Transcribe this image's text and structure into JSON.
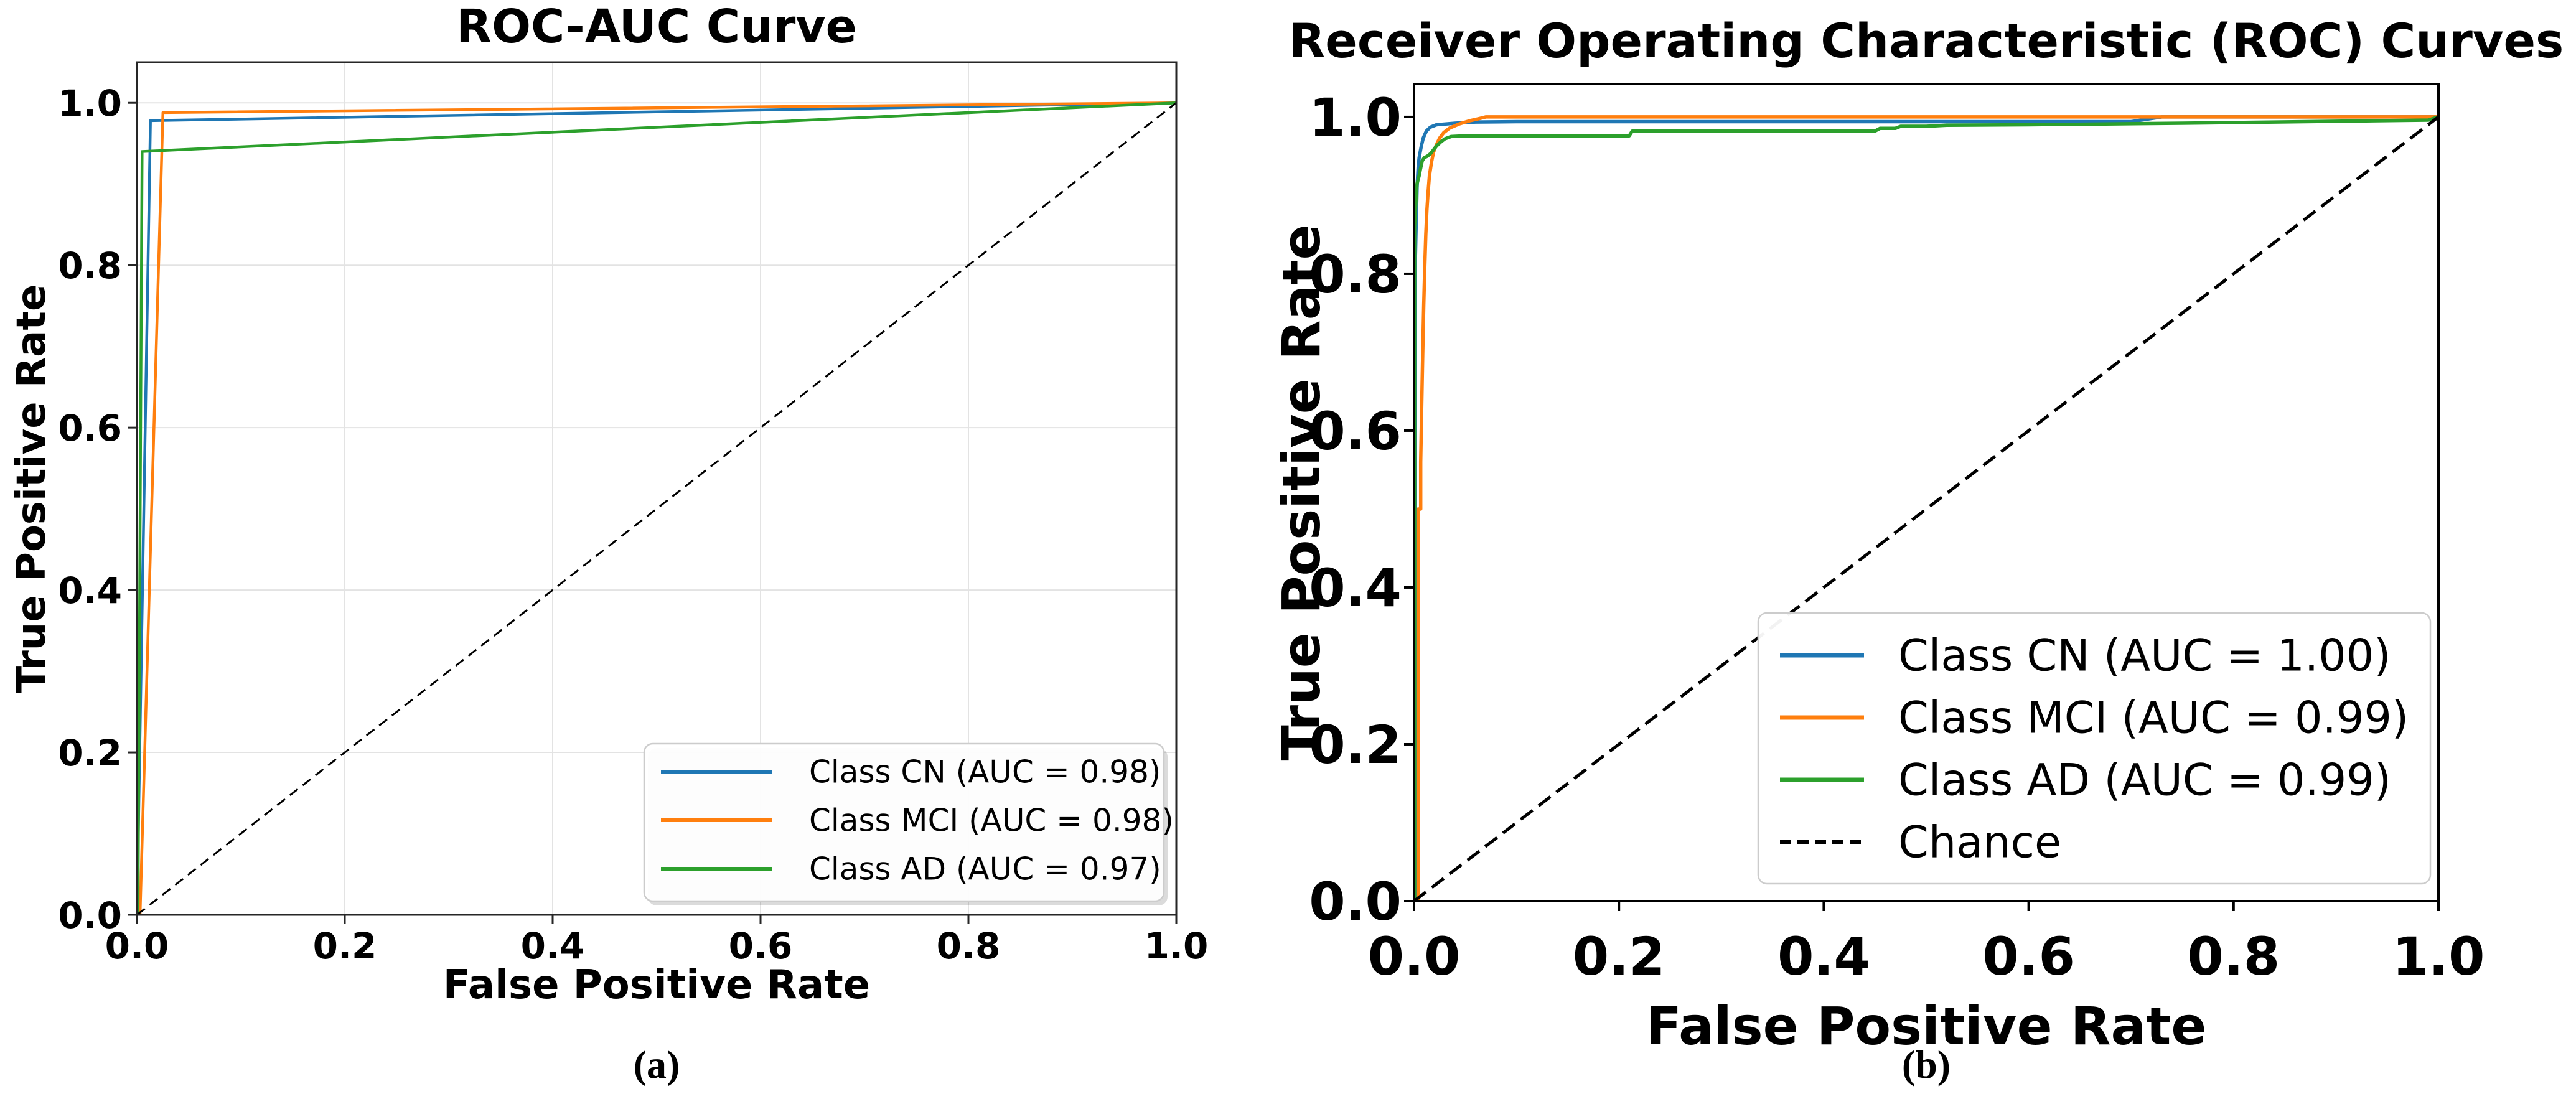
{
  "page": {
    "background": "#ffffff"
  },
  "captions": {
    "a": "(a)",
    "b": "(b)"
  },
  "palette": {
    "cn": "#1f77b4",
    "mci": "#ff7f0e",
    "ad": "#2ca02c",
    "chance": "#000000",
    "grid": "#e3e3e3",
    "spine_a": "#262626",
    "spine_b": "#000000",
    "legend_border": "#cccccc",
    "legend_bg": "#ffffff",
    "text": "#000000"
  },
  "chart_data": [
    {
      "id": "a",
      "type": "line",
      "title": "ROC-AUC Curve",
      "xlabel": "False Positive Rate",
      "ylabel": "True Positive Rate",
      "caption": "(a)",
      "xlim": [
        0,
        1
      ],
      "ylim": [
        0,
        1.05
      ],
      "xticks": [
        0,
        0.2,
        0.4,
        0.6,
        0.8,
        1
      ],
      "yticks": [
        0,
        0.2,
        0.4,
        0.6,
        0.8,
        1
      ],
      "xtick_labels": [
        "0.0",
        "0.2",
        "0.4",
        "0.6",
        "0.8",
        "1.0"
      ],
      "ytick_labels": [
        "0.0",
        "0.2",
        "0.4",
        "0.6",
        "0.8",
        "1.0"
      ],
      "grid": true,
      "legend_position": "lower right",
      "series": [
        {
          "key": "cn",
          "label": "Class CN (AUC = 0.98)",
          "auc": "0.98",
          "color": "#1f77b4",
          "dash": null,
          "in_legend": true,
          "points": [
            [
              0,
              0
            ],
            [
              0.013,
              0.978
            ],
            [
              1,
              1
            ]
          ]
        },
        {
          "key": "mci",
          "label": "Class MCI (AUC = 0.98)",
          "auc": "0.98",
          "color": "#ff7f0e",
          "dash": null,
          "in_legend": true,
          "points": [
            [
              0.003,
              0
            ],
            [
              0.025,
              0.988
            ],
            [
              1,
              1
            ]
          ]
        },
        {
          "key": "ad",
          "label": "Class AD (AUC = 0.97)",
          "auc": "0.97",
          "color": "#2ca02c",
          "dash": null,
          "in_legend": true,
          "points": [
            [
              0.001,
              0
            ],
            [
              0.005,
              0.94
            ],
            [
              1,
              1
            ]
          ]
        },
        {
          "key": "chance",
          "label": "Chance",
          "auc": null,
          "color": "#000000",
          "dash": "16 10",
          "in_legend": false,
          "points": [
            [
              0,
              0
            ],
            [
              1,
              1
            ]
          ]
        }
      ]
    },
    {
      "id": "b",
      "type": "line",
      "title": "Receiver Operating Characteristic (ROC) Curves",
      "xlabel": "False Positive Rate",
      "ylabel": "True Positive Rate",
      "caption": "(b)",
      "xlim": [
        0,
        1
      ],
      "ylim": [
        0,
        1.042
      ],
      "xticks": [
        0,
        0.2,
        0.4,
        0.6,
        0.8,
        1
      ],
      "yticks": [
        0,
        0.2,
        0.4,
        0.6,
        0.8,
        1
      ],
      "xtick_labels": [
        "0.0",
        "0.2",
        "0.4",
        "0.6",
        "0.8",
        "1.0"
      ],
      "ytick_labels": [
        "0.0",
        "0.2",
        "0.4",
        "0.6",
        "0.8",
        "1.0"
      ],
      "grid": false,
      "legend_position": "lower right",
      "series": [
        {
          "key": "cn",
          "label": "Class CN (AUC = 1.00)",
          "auc": "1.00",
          "color": "#1f77b4",
          "dash": null,
          "in_legend": true,
          "points": [
            [
              0.001,
              0
            ],
            [
              0.001,
              0.8
            ],
            [
              0.002,
              0.86
            ],
            [
              0.003,
              0.91
            ],
            [
              0.004,
              0.935
            ],
            [
              0.005,
              0.948
            ],
            [
              0.007,
              0.962
            ],
            [
              0.009,
              0.973
            ],
            [
              0.012,
              0.982
            ],
            [
              0.016,
              0.987
            ],
            [
              0.022,
              0.99
            ],
            [
              0.04,
              0.992
            ],
            [
              0.06,
              0.9935
            ],
            [
              0.1,
              0.994
            ],
            [
              0.7,
              0.994
            ],
            [
              0.73,
              1.0
            ],
            [
              1,
              1
            ]
          ]
        },
        {
          "key": "mci",
          "label": "Class MCI (AUC = 0.99)",
          "auc": "0.99",
          "color": "#ff7f0e",
          "dash": null,
          "in_legend": true,
          "points": [
            [
              0.004,
              0
            ],
            [
              0.004,
              0.5
            ],
            [
              0.0065,
              0.5
            ],
            [
              0.0065,
              0.56
            ],
            [
              0.0075,
              0.63
            ],
            [
              0.0085,
              0.7
            ],
            [
              0.0095,
              0.76
            ],
            [
              0.0105,
              0.81
            ],
            [
              0.0115,
              0.85
            ],
            [
              0.0125,
              0.88
            ],
            [
              0.0135,
              0.9
            ],
            [
              0.015,
              0.925
            ],
            [
              0.017,
              0.942
            ],
            [
              0.019,
              0.955
            ],
            [
              0.022,
              0.965
            ],
            [
              0.025,
              0.973
            ],
            [
              0.029,
              0.98
            ],
            [
              0.035,
              0.986
            ],
            [
              0.044,
              0.991
            ],
            [
              0.054,
              0.995
            ],
            [
              0.064,
              0.998
            ],
            [
              0.07,
              1.0
            ],
            [
              1,
              1
            ]
          ]
        },
        {
          "key": "ad",
          "label": "Class AD (AUC = 0.99)",
          "auc": "0.99",
          "color": "#2ca02c",
          "dash": null,
          "in_legend": true,
          "points": [
            [
              0.0005,
              0
            ],
            [
              0.0005,
              0.86
            ],
            [
              0.002,
              0.895
            ],
            [
              0.003,
              0.915
            ],
            [
              0.005,
              0.925
            ],
            [
              0.006,
              0.932
            ],
            [
              0.008,
              0.944
            ],
            [
              0.01,
              0.948
            ],
            [
              0.013,
              0.95
            ],
            [
              0.016,
              0.953
            ],
            [
              0.019,
              0.958
            ],
            [
              0.022,
              0.963
            ],
            [
              0.026,
              0.968
            ],
            [
              0.03,
              0.972
            ],
            [
              0.036,
              0.975
            ],
            [
              0.05,
              0.976
            ],
            [
              0.21,
              0.976
            ],
            [
              0.213,
              0.982
            ],
            [
              0.45,
              0.982
            ],
            [
              0.455,
              0.9855
            ],
            [
              0.47,
              0.9855
            ],
            [
              0.475,
              0.988
            ],
            [
              0.5,
              0.988
            ],
            [
              0.52,
              0.9895
            ],
            [
              0.6,
              0.99
            ],
            [
              0.75,
              0.992
            ],
            [
              0.9,
              0.9945
            ],
            [
              0.99,
              0.996
            ],
            [
              1,
              1
            ]
          ]
        },
        {
          "key": "chance",
          "label": "Chance",
          "auc": null,
          "color": "#000000",
          "dash": "24 12",
          "in_legend": true,
          "points": [
            [
              0,
              0
            ],
            [
              1,
              1
            ]
          ]
        }
      ]
    }
  ]
}
